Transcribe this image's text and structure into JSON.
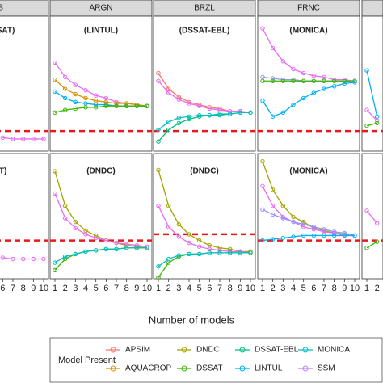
{
  "chart_data": {
    "type": "line",
    "x_label": "Number of models",
    "x": [
      1,
      2,
      3,
      4,
      5,
      6,
      7,
      8,
      9,
      10
    ],
    "xlim": [
      0.5,
      10.5
    ],
    "ylim": [
      0,
      100
    ],
    "legend_title": "Model Present",
    "legend": [
      {
        "name": "APSIM",
        "color": "#f8766d"
      },
      {
        "name": "AQUACROP",
        "color": "#d89000"
      },
      {
        "name": "DNDC",
        "color": "#a3a500"
      },
      {
        "name": "DSSAT",
        "color": "#39b600"
      },
      {
        "name": "DSSAT-EBL",
        "color": "#00bf7d"
      },
      {
        "name": "LINTUL",
        "color": "#00b0f6"
      },
      {
        "name": "MONICA",
        "color": "#00bfc4"
      },
      {
        "name": "SSM",
        "color": "#c77cff"
      }
    ],
    "columns": [
      {
        "header": "NS",
        "panels": [
          {
            "label": ": DSSAT)",
            "reference": 14,
            "series": [
              {
                "name": "SSM",
                "color": "#e76bf3",
                "values": [
                  null,
                  null,
                  null,
                  null,
                  null,
                  9,
                  8,
                  8,
                  8,
                  8
                ]
              }
            ]
          },
          {
            "label": "SAT)",
            "reference": 31,
            "series": [
              {
                "name": "SSM",
                "color": "#e76bf3",
                "values": [
                  null,
                  null,
                  null,
                  null,
                  null,
                  17,
                  16,
                  16,
                  16,
                  16
                ]
              }
            ]
          }
        ]
      },
      {
        "header": "ARGN",
        "panels": [
          {
            "label": "(LINTUL)",
            "reference": 14,
            "series": [
              {
                "name": "SSM",
                "color": "#e76bf3",
                "values": [
                  66,
                  55,
                  49,
                  45,
                  41,
                  39,
                  36,
                  35,
                  34,
                  33
                ]
              },
              {
                "name": "AQUACROP",
                "color": "#d89000",
                "values": [
                  53,
                  46,
                  42,
                  39,
                  37,
                  36,
                  35,
                  35,
                  34,
                  33
                ]
              },
              {
                "name": "LINTUL",
                "color": "#00b0f6",
                "values": [
                  44,
                  39,
                  36,
                  35,
                  34,
                  34,
                  33,
                  33,
                  33,
                  33
                ]
              },
              {
                "name": "DSSAT",
                "color": "#39b600",
                "values": [
                  28,
                  30,
                  31,
                  32,
                  32,
                  33,
                  33,
                  33,
                  33,
                  33
                ]
              }
            ]
          },
          {
            "label": "(DNDC)",
            "reference": 31,
            "series": [
              {
                "name": "DNDC",
                "color": "#a3a500",
                "values": [
                  87,
                  59,
                  46,
                  39,
                  35,
                  31,
                  29,
                  27,
                  26,
                  25
                ]
              },
              {
                "name": "SSM",
                "color": "#e76bf3",
                "values": [
                  69,
                  49,
                  41,
                  36,
                  33,
                  31,
                  29,
                  28,
                  27,
                  26
                ]
              },
              {
                "name": "DSSAT",
                "color": "#39b600",
                "values": [
                  7,
                  16,
                  20,
                  22,
                  23,
                  24,
                  24,
                  25,
                  25,
                  25
                ]
              },
              {
                "name": "MONICA",
                "color": "#00bfc4",
                "values": [
                  13,
                  18,
                  20,
                  22,
                  23,
                  24,
                  24,
                  25,
                  25,
                  25
                ]
              }
            ]
          }
        ]
      },
      {
        "header": "BRZL",
        "panels": [
          {
            "label": "(DSSAT-EBL)",
            "reference": 14,
            "series": [
              {
                "name": "APSIM",
                "color": "#f8766d",
                "values": [
                  58,
                  46,
                  40,
                  36,
                  34,
                  32,
                  31,
                  29,
                  29,
                  28
                ]
              },
              {
                "name": "SSM",
                "color": "#e76bf3",
                "values": [
                  52,
                  43,
                  38,
                  35,
                  33,
                  31,
                  30,
                  29,
                  29,
                  28
                ]
              },
              {
                "name": "DSSAT-EBL",
                "color": "#00bf7d",
                "values": [
                  6,
                  15,
                  20,
                  23,
                  25,
                  26,
                  26,
                  27,
                  28,
                  28
                ]
              },
              {
                "name": "MONICA",
                "color": "#00bfc4",
                "values": [
                  15,
                  21,
                  24,
                  25,
                  26,
                  26,
                  27,
                  27,
                  28,
                  28
                ]
              }
            ]
          },
          {
            "label": "(DNDC)",
            "reference": 36,
            "series": [
              {
                "name": "DNDC",
                "color": "#a3a500",
                "values": [
                  88,
                  59,
                  44,
                  36,
                  31,
                  27,
                  25,
                  24,
                  22,
                  22
                ]
              },
              {
                "name": "SSM",
                "color": "#e76bf3",
                "values": [
                  59,
                  42,
                  34,
                  29,
                  26,
                  24,
                  23,
                  22,
                  22,
                  21
                ]
              },
              {
                "name": "DSSAT",
                "color": "#39b600",
                "values": [
                  1,
                  13,
                  18,
                  20,
                  20,
                  21,
                  21,
                  21,
                  21,
                  21
                ]
              },
              {
                "name": "MONICA",
                "color": "#00bfc4",
                "values": [
                  10,
                  16,
                  19,
                  20,
                  20,
                  21,
                  21,
                  21,
                  21,
                  21
                ]
              }
            ]
          }
        ]
      },
      {
        "header": "FRNC",
        "panels": [
          {
            "label": "(MONICA)",
            "reference": 14,
            "series": [
              {
                "name": "SSM",
                "color": "#e76bf3",
                "values": [
                  92,
                  77,
                  67,
                  61,
                  58,
                  56,
                  55,
                  53,
                  53,
                  52
                ]
              },
              {
                "name": "LINTUL",
                "color": "#9590ff",
                "values": [
                  55,
                  54,
                  53,
                  53,
                  52,
                  52,
                  52,
                  52,
                  52,
                  52
                ]
              },
              {
                "name": "DSSAT",
                "color": "#39b600",
                "values": [
                  52,
                  52,
                  52,
                  52,
                  52,
                  52,
                  52,
                  52,
                  52,
                  52
                ]
              },
              {
                "name": "MONICA",
                "color": "#00b0f6",
                "values": [
                  37,
                  25,
                  28,
                  34,
                  39,
                  43,
                  46,
                  48,
                  50,
                  51
                ]
              }
            ]
          },
          {
            "label": "(MONICA)",
            "reference": 31,
            "series": [
              {
                "name": "DNDC",
                "color": "#a3a500",
                "values": [
                  95,
                  72,
                  59,
                  50,
                  46,
                  41,
                  39,
                  37,
                  36,
                  35
                ]
              },
              {
                "name": "SSM",
                "color": "#e76bf3",
                "values": [
                  75,
                  59,
                  50,
                  46,
                  42,
                  40,
                  38,
                  37,
                  35,
                  35
                ]
              },
              {
                "name": "LINTUL",
                "color": "#9590ff",
                "values": [
                  56,
                  52,
                  49,
                  46,
                  44,
                  42,
                  40,
                  38,
                  37,
                  35
                ]
              },
              {
                "name": "MONICA",
                "color": "#00b0f6",
                "values": [
                  31,
                  32,
                  33,
                  34,
                  35,
                  35,
                  35,
                  35,
                  35,
                  35
                ]
              }
            ]
          }
        ]
      },
      {
        "header": "",
        "panels": [
          {
            "label": "",
            "reference": 14,
            "series": [
              {
                "name": "MONICA",
                "color": "#00b0f6",
                "values": [
                  60,
                  25,
                  null,
                  null,
                  null,
                  null,
                  null,
                  null,
                  null,
                  null
                ]
              },
              {
                "name": "SSM",
                "color": "#e76bf3",
                "values": [
                  30,
                  22,
                  null,
                  null,
                  null,
                  null,
                  null,
                  null,
                  null,
                  null
                ]
              },
              {
                "name": "DSSAT",
                "color": "#39b600",
                "values": [
                  18,
                  20,
                  null,
                  null,
                  null,
                  null,
                  null,
                  null,
                  null,
                  null
                ]
              }
            ]
          },
          {
            "label": "",
            "reference": 31,
            "series": [
              {
                "name": "SSM",
                "color": "#e76bf3",
                "values": [
                  55,
                  45,
                  null,
                  null,
                  null,
                  null,
                  null,
                  null,
                  null,
                  null
                ]
              },
              {
                "name": "DSSAT",
                "color": "#39b600",
                "values": [
                  25,
                  30,
                  null,
                  null,
                  null,
                  null,
                  null,
                  null,
                  null,
                  null
                ]
              }
            ]
          }
        ]
      }
    ]
  }
}
